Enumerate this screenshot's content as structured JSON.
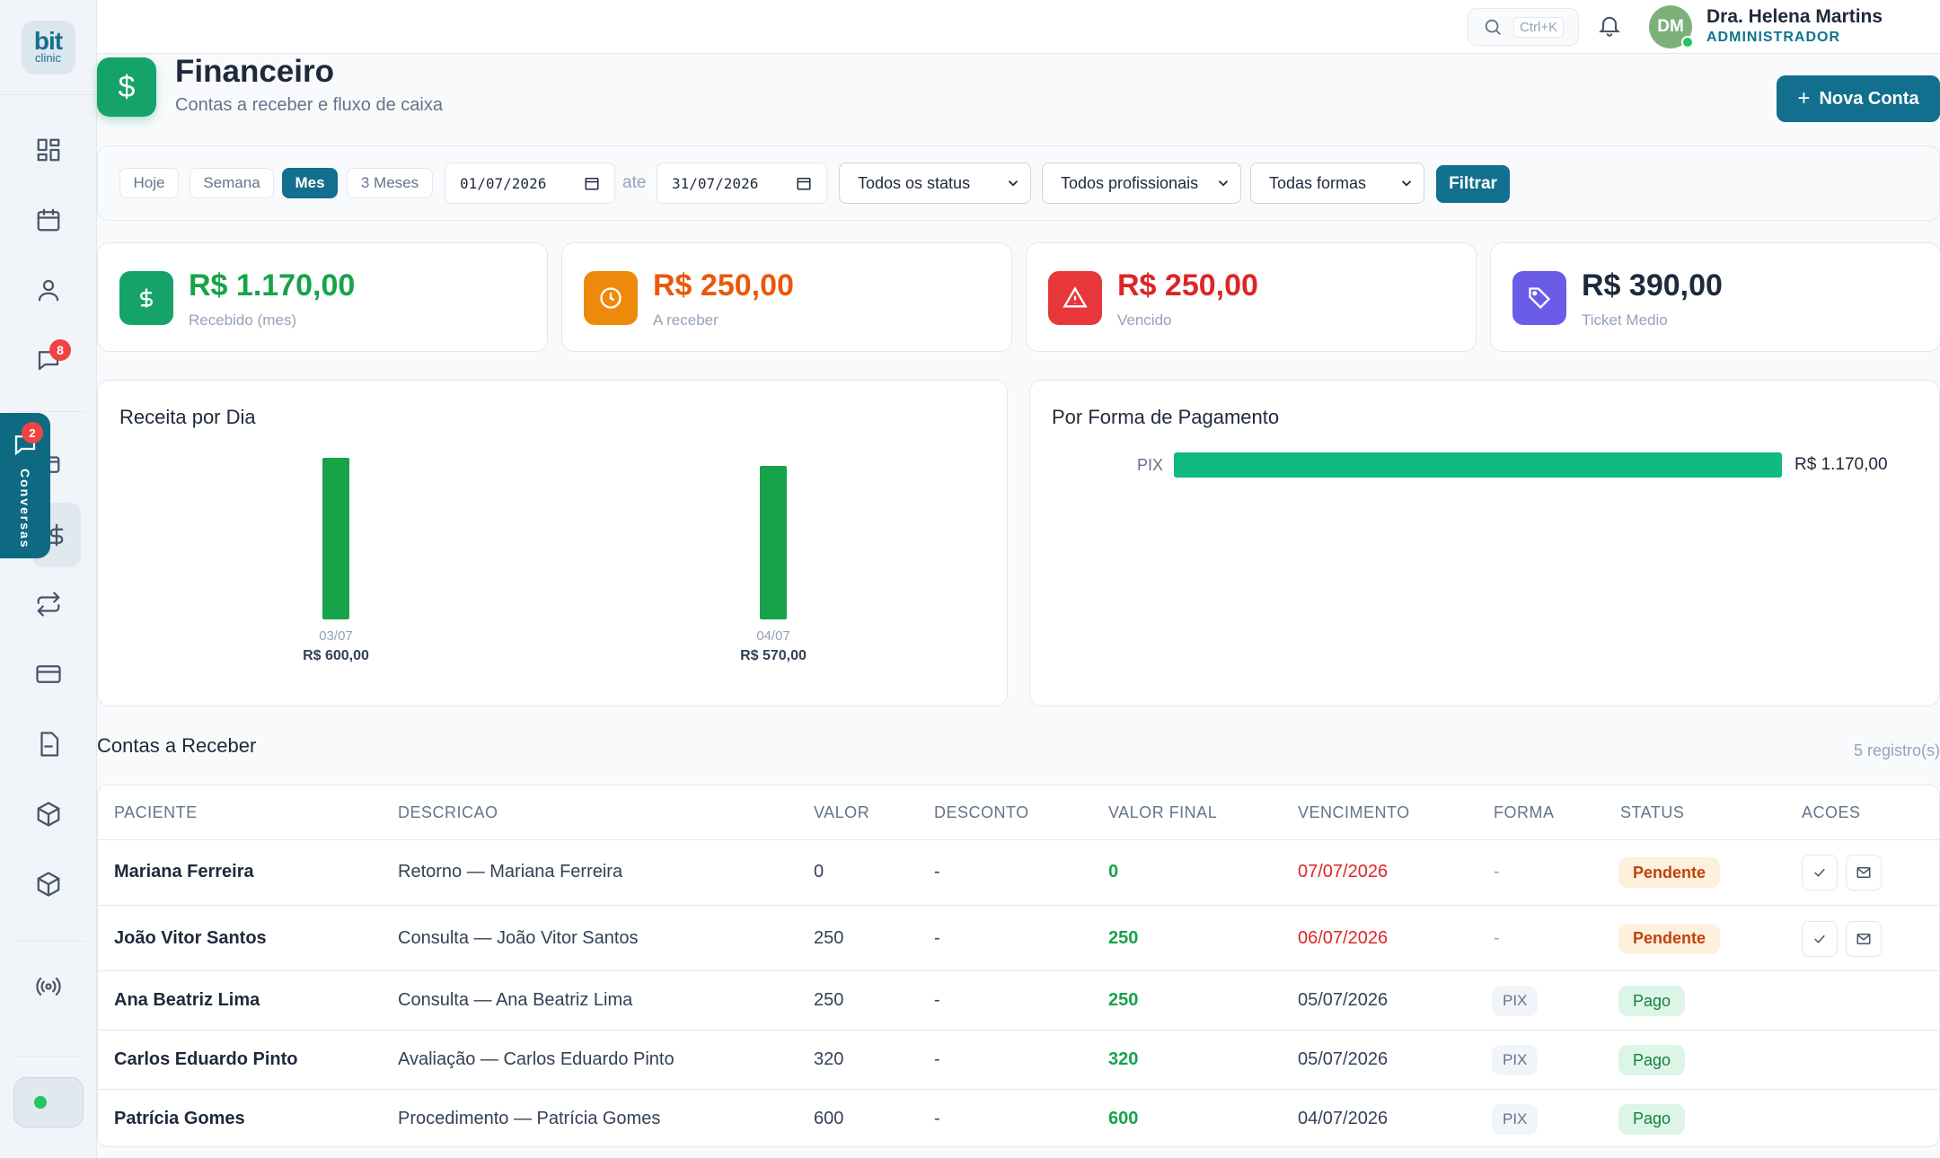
{
  "app": {
    "logo_top": "bit",
    "logo_bottom": "clinic"
  },
  "sidebar": {
    "messages_badge": "8"
  },
  "conversas": {
    "label": "Conversas",
    "badge": "2"
  },
  "topbar": {
    "search_shortcut": "Ctrl+K",
    "avatar_initials": "DM",
    "user_name": "Dra. Helena Martins",
    "user_role": "ADMINISTRADOR"
  },
  "header": {
    "icon": "$",
    "title": "Financeiro",
    "subtitle": "Contas a receber e fluxo de caixa",
    "new_button": "Nova Conta"
  },
  "filters": {
    "periods": [
      "Hoje",
      "Semana",
      "Mes",
      "3 Meses"
    ],
    "active_period": "Mes",
    "date_from": "01/07/2026",
    "date_sep": "ate",
    "date_to": "31/07/2026",
    "status_select": "Todos os status",
    "prof_select": "Todos profissionais",
    "forma_select": "Todas formas",
    "filter_button": "Filtrar"
  },
  "stats": [
    {
      "value": "R$ 1.170,00",
      "label": "Recebido (mes)",
      "color": "#16a34a",
      "icon_color": "#16a36a",
      "icon": "dollar-icon"
    },
    {
      "value": "R$ 250,00",
      "label": "A receber",
      "color": "#ea580c",
      "icon_color": "#ee8a0b",
      "icon": "clock-icon"
    },
    {
      "value": "R$ 250,00",
      "label": "Vencido",
      "color": "#dc2626",
      "icon_color": "#e8373b",
      "icon": "alert-icon"
    },
    {
      "value": "R$ 390,00",
      "label": "Ticket Medio",
      "color": "#1e293b",
      "icon_color": "#6b5ce7",
      "icon": "tag-icon"
    }
  ],
  "charts": {
    "daily_title": "Receita por Dia",
    "payment_title": "Por Forma de Pagamento"
  },
  "chart_data": [
    {
      "type": "bar",
      "title": "Receita por Dia",
      "categories": [
        "03/07",
        "04/07"
      ],
      "values": [
        600,
        570
      ],
      "value_labels": [
        "R$ 600,00",
        "R$ 570,00"
      ],
      "color": "#16a34a"
    },
    {
      "type": "bar",
      "orientation": "horizontal",
      "title": "Por Forma de Pagamento",
      "categories": [
        "PIX"
      ],
      "values": [
        1170
      ],
      "value_labels": [
        "R$ 1.170,00"
      ],
      "color": "#10b981"
    }
  ],
  "table": {
    "title": "Contas a Receber",
    "count": "5 registro(s)",
    "columns": [
      "PACIENTE",
      "DESCRICAO",
      "VALOR",
      "DESCONTO",
      "VALOR FINAL",
      "VENCIMENTO",
      "FORMA",
      "STATUS",
      "ACOES"
    ],
    "rows": [
      {
        "paciente": "Mariana Ferreira",
        "descricao": "Retorno — Mariana Ferreira",
        "valor": "0",
        "desconto": "-",
        "valor_final": "0",
        "vencimento": "07/07/2026",
        "forma": "-",
        "status": "Pendente"
      },
      {
        "paciente": "João Vitor Santos",
        "descricao": "Consulta — João Vitor Santos",
        "valor": "250",
        "desconto": "-",
        "valor_final": "250",
        "vencimento": "06/07/2026",
        "forma": "-",
        "status": "Pendente"
      },
      {
        "paciente": "Ana Beatriz Lima",
        "descricao": "Consulta — Ana Beatriz Lima",
        "valor": "250",
        "desconto": "-",
        "valor_final": "250",
        "vencimento": "05/07/2026",
        "forma": "PIX",
        "status": "Pago"
      },
      {
        "paciente": "Carlos Eduardo Pinto",
        "descricao": "Avaliação — Carlos Eduardo Pinto",
        "valor": "320",
        "desconto": "-",
        "valor_final": "320",
        "vencimento": "05/07/2026",
        "forma": "PIX",
        "status": "Pago"
      },
      {
        "paciente": "Patrícia Gomes",
        "descricao": "Procedimento — Patrícia Gomes",
        "valor": "600",
        "desconto": "-",
        "valor_final": "600",
        "vencimento": "04/07/2026",
        "forma": "PIX",
        "status": "Pago"
      }
    ]
  }
}
